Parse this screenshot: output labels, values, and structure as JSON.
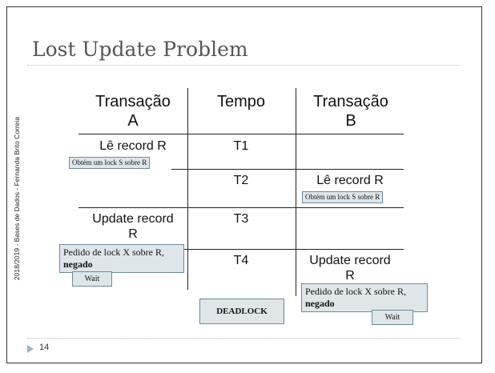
{
  "slide": {
    "title": "Lost Update Problem",
    "side_text": "2018/2019 - Bases de Dados - Fernanda Brito Correia",
    "page_number": "14"
  },
  "table": {
    "headers": {
      "col_a": [
        "Transação",
        "A"
      ],
      "col_time": "Tempo",
      "col_b": [
        "Transação",
        "B"
      ]
    },
    "rows": [
      {
        "time": "T1",
        "a": "Lê record R",
        "a_note": "Obtém um lock S sobre R",
        "b": "",
        "b_note": ""
      },
      {
        "time": "T2",
        "a": "",
        "a_note": "",
        "b": "Lê record R",
        "b_note": "Obtém um lock S sobre R"
      },
      {
        "time": "T3",
        "a": [
          "Update record",
          "R"
        ],
        "a_note": "",
        "b": "",
        "b_note": ""
      },
      {
        "time": "T4",
        "a": "",
        "a_note": "",
        "b": [
          "Update record",
          "R"
        ],
        "b_note": ""
      }
    ]
  },
  "notes": {
    "a_lock_request": "Pedido de  lock X sobre R,",
    "a_lock_denied": "negado",
    "a_wait": "Wait",
    "b_lock_request": "Pedido de  lock X sobre R,",
    "b_lock_denied": "negado",
    "b_wait": "Wait",
    "deadlock": "DEADLOCK"
  }
}
